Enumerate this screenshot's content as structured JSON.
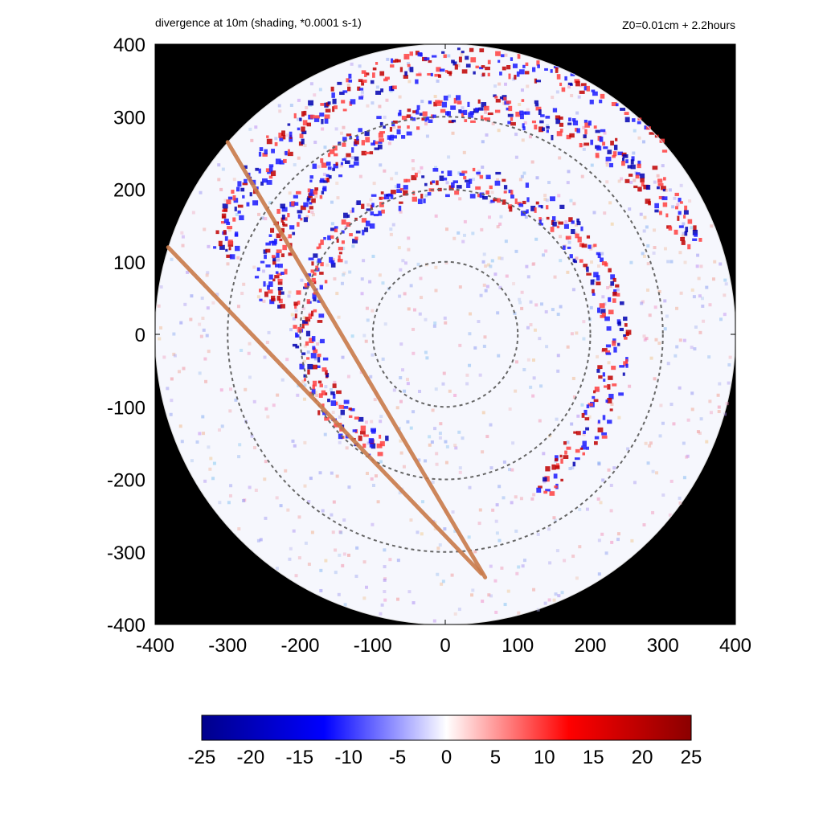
{
  "chart_data": {
    "type": "heatmap",
    "title": "divergence at 10m (shading, *0.0001 s-1)",
    "subtitle": "Z0=0.01cm  + 2.2hours",
    "xlabel": "",
    "ylabel": "",
    "xlim": [
      -400,
      400
    ],
    "ylim": [
      -400,
      400
    ],
    "x_ticks": [
      "-400",
      "-300",
      "-200",
      "-100",
      "0",
      "100",
      "200",
      "300",
      "400"
    ],
    "y_ticks": [
      "400",
      "300",
      "200",
      "100",
      "0",
      "-100",
      "-200",
      "-300",
      "-400"
    ],
    "domain_radius": 400,
    "background_color": "#000000",
    "dashed_circle_radii": [
      100,
      200,
      300
    ],
    "dashed_circle_color": "#666666",
    "lines": [
      {
        "from": [
          -382,
          120
        ],
        "to": [
          50,
          -330
        ],
        "color": "#c97a4a"
      },
      {
        "from": [
          -300,
          265
        ],
        "to": [
          55,
          -335
        ],
        "color": "#c97a4a"
      }
    ],
    "colorbar": {
      "min": -25,
      "max": 25,
      "tick_labels": [
        "-25",
        "-20",
        "-15",
        "-10",
        "-5",
        "0",
        "5",
        "10",
        "15",
        "20",
        "25"
      ],
      "colors": [
        "#00008b",
        "#0000ff",
        "#ffffff",
        "#ff0000",
        "#8b0000"
      ]
    },
    "rainbands": [
      {
        "r": 180,
        "start_angle": 120,
        "sweep": 300,
        "growth": 0.35,
        "density": 70
      },
      {
        "r": 250,
        "start_angle": 190,
        "sweep": 150,
        "growth": 0.45,
        "density": 60
      },
      {
        "r": 330,
        "start_angle": 200,
        "sweep": 120,
        "growth": 0.25,
        "density": 50
      }
    ]
  }
}
